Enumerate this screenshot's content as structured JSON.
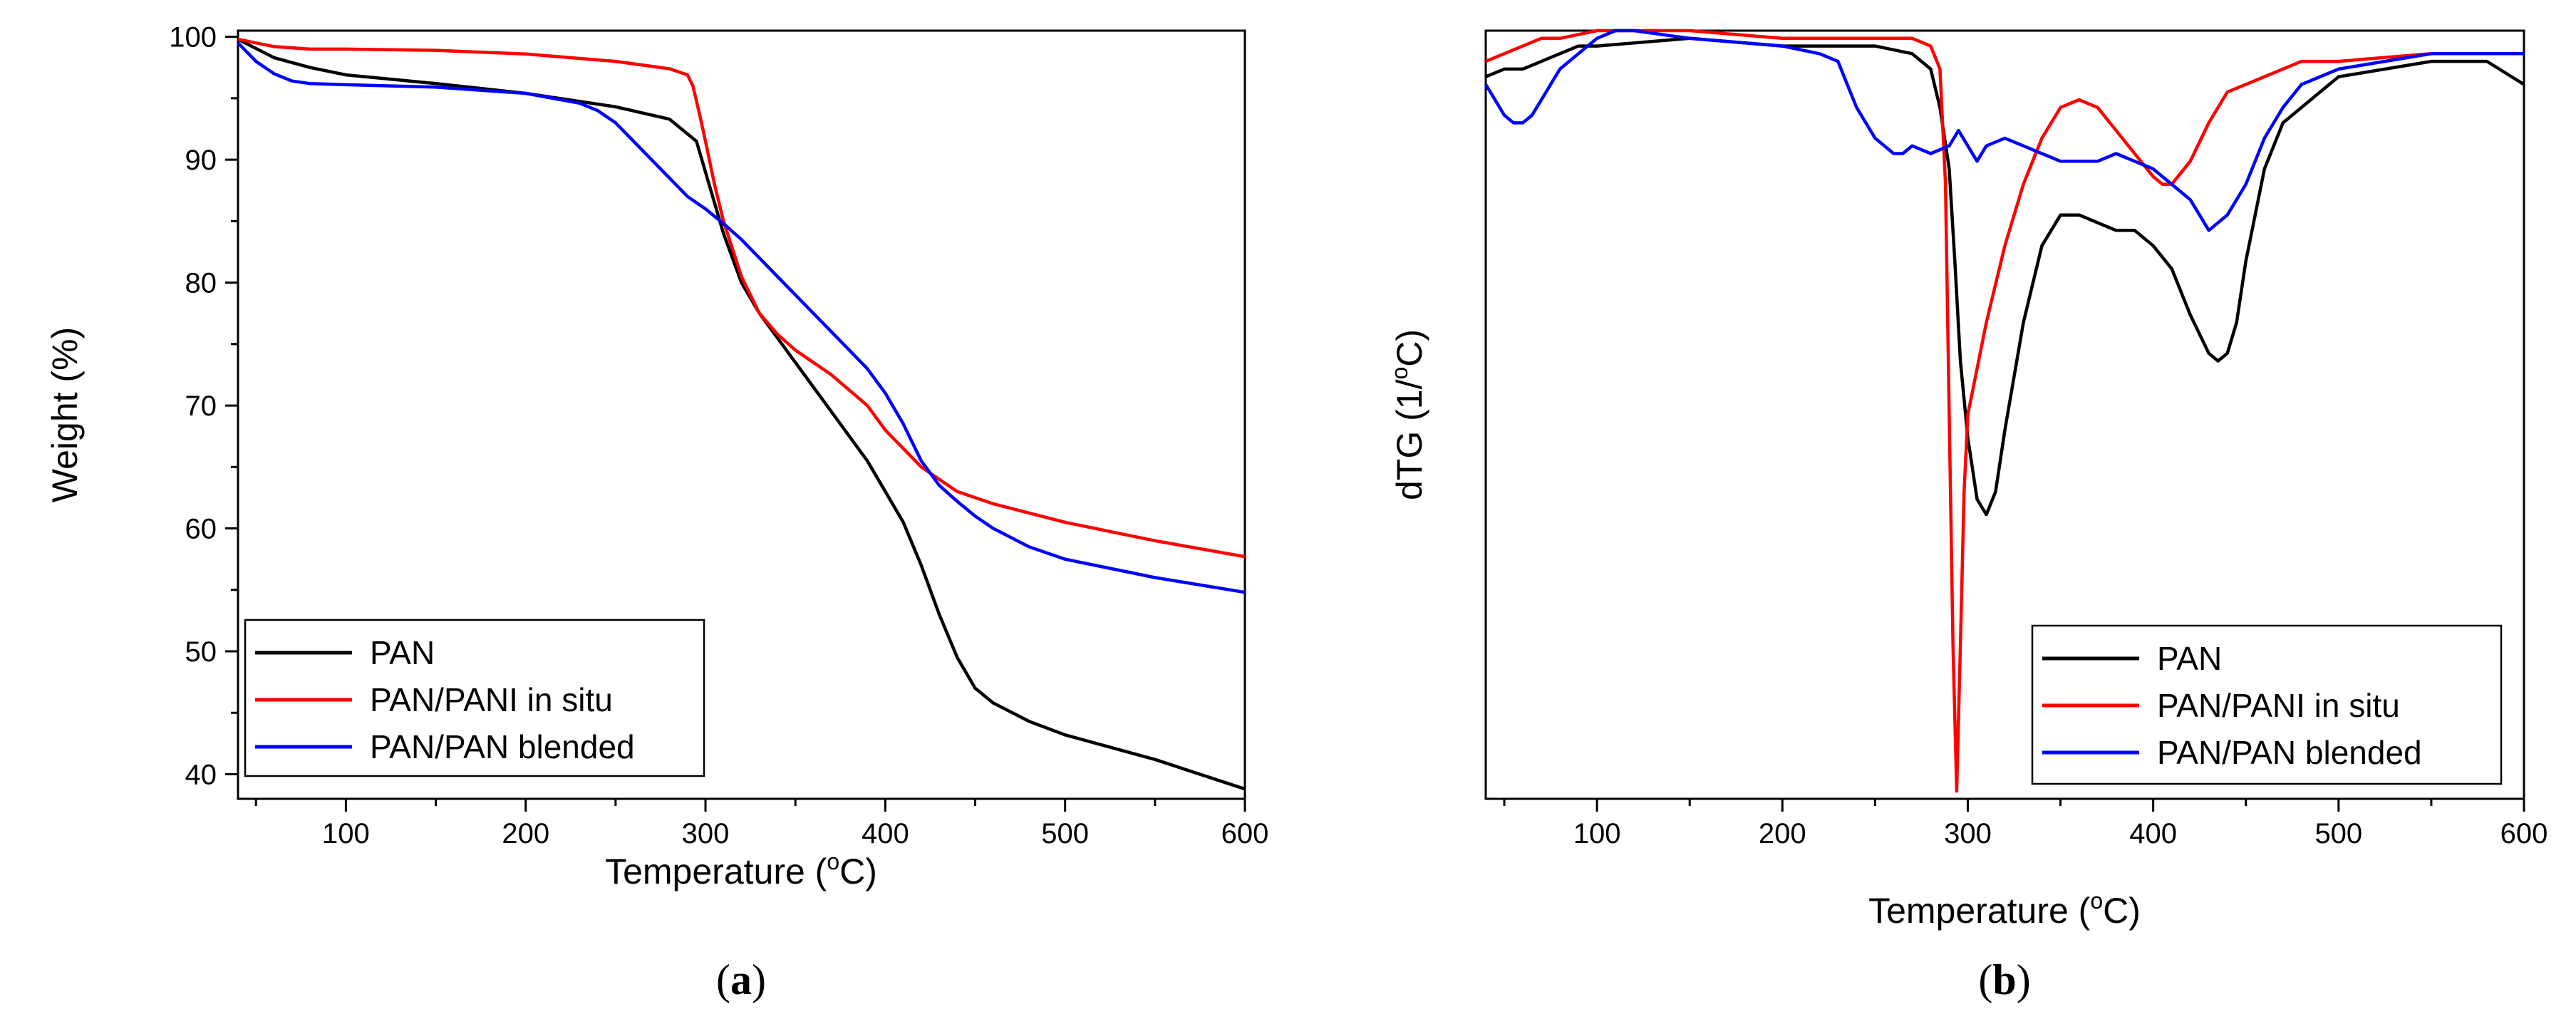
{
  "colors": {
    "PAN": "#000000",
    "PAN/PANI in situ": "#ff0000",
    "PAN/PAN blended": "#0000ff"
  },
  "chart_data": [
    {
      "type": "line",
      "panel": "(a)",
      "panel_letter": "a",
      "xlabel": "Temperature (",
      "xlabel_degree": "o",
      "xlabel_unit": "C)",
      "ylabel": "Weight (%)",
      "xlim": [
        40,
        600
      ],
      "ylim": [
        38,
        100.5
      ],
      "xticks": [
        100,
        200,
        300,
        400,
        500,
        600
      ],
      "yticks": [
        40,
        50,
        60,
        70,
        80,
        90,
        100
      ],
      "legend_position": "bottom-left",
      "series": [
        {
          "name": "PAN",
          "color": "#000000",
          "x": [
            40,
            60,
            80,
            100,
            150,
            200,
            250,
            280,
            295,
            300,
            310,
            320,
            330,
            340,
            350,
            370,
            390,
            400,
            410,
            420,
            430,
            440,
            450,
            460,
            480,
            500,
            550,
            600
          ],
          "y": [
            99.8,
            98.3,
            97.5,
            96.9,
            96.2,
            95.4,
            94.3,
            93.3,
            91.5,
            89.0,
            84.0,
            80.0,
            77.5,
            75.5,
            73.5,
            69.5,
            65.5,
            63.0,
            60.5,
            57.0,
            53.0,
            49.5,
            47.0,
            45.8,
            44.3,
            43.2,
            41.2,
            38.8
          ]
        },
        {
          "name": "PAN/PANI in situ",
          "color": "#ff0000",
          "x": [
            40,
            60,
            80,
            100,
            150,
            200,
            250,
            280,
            290,
            293,
            297,
            300,
            305,
            310,
            320,
            330,
            340,
            350,
            370,
            390,
            400,
            410,
            420,
            430,
            440,
            460,
            500,
            550,
            600
          ],
          "y": [
            99.8,
            99.2,
            99.0,
            99.0,
            98.9,
            98.6,
            98.0,
            97.4,
            96.9,
            96.0,
            93.5,
            91.5,
            88.0,
            85.0,
            80.5,
            77.5,
            75.8,
            74.5,
            72.5,
            70.0,
            68.0,
            66.5,
            65.0,
            64.0,
            63.0,
            62.0,
            60.5,
            59.0,
            57.7
          ]
        },
        {
          "name": "PAN/PAN blended",
          "color": "#0000ff",
          "x": [
            40,
            50,
            60,
            70,
            80,
            100,
            150,
            200,
            230,
            240,
            250,
            260,
            270,
            280,
            290,
            300,
            310,
            320,
            330,
            340,
            350,
            370,
            390,
            400,
            410,
            420,
            430,
            440,
            450,
            460,
            480,
            500,
            550,
            600
          ],
          "y": [
            99.5,
            98.0,
            97.0,
            96.4,
            96.2,
            96.1,
            95.9,
            95.4,
            94.6,
            94.0,
            93.0,
            91.5,
            90.0,
            88.5,
            87.0,
            86.0,
            84.8,
            83.5,
            82.0,
            80.5,
            79.0,
            76.0,
            73.0,
            71.0,
            68.5,
            65.5,
            63.5,
            62.2,
            61.0,
            60.0,
            58.5,
            57.5,
            56.0,
            54.8
          ]
        }
      ]
    },
    {
      "type": "line",
      "panel": "(b)",
      "panel_letter": "b",
      "xlabel": "Temperature (",
      "xlabel_degree": "o",
      "xlabel_unit": "C)",
      "ylabel": "dTG (1/",
      "ylabel_degree": "o",
      "ylabel_unit": "C)",
      "xlim": [
        40,
        600
      ],
      "ylim": [
        0,
        1
      ],
      "y_tick_labels_shown": false,
      "xticks": [
        100,
        200,
        300,
        400,
        500,
        600
      ],
      "legend_position": "bottom-right",
      "series": [
        {
          "name": "PAN",
          "color": "#000000",
          "x": [
            40,
            50,
            60,
            70,
            80,
            90,
            100,
            150,
            200,
            250,
            270,
            280,
            285,
            290,
            293,
            296,
            300,
            305,
            310,
            315,
            320,
            330,
            340,
            350,
            360,
            370,
            380,
            390,
            400,
            410,
            420,
            430,
            435,
            440,
            445,
            450,
            460,
            470,
            490,
            500,
            550,
            580,
            600
          ],
          "y": [
            0.94,
            0.95,
            0.95,
            0.96,
            0.97,
            0.98,
            0.98,
            0.99,
            0.98,
            0.98,
            0.97,
            0.95,
            0.9,
            0.82,
            0.7,
            0.57,
            0.47,
            0.39,
            0.37,
            0.4,
            0.48,
            0.62,
            0.72,
            0.76,
            0.76,
            0.75,
            0.74,
            0.74,
            0.72,
            0.69,
            0.63,
            0.58,
            0.57,
            0.58,
            0.62,
            0.7,
            0.82,
            0.88,
            0.92,
            0.94,
            0.96,
            0.96,
            0.93
          ]
        },
        {
          "name": "PAN/PANI in situ",
          "color": "#ff0000",
          "x": [
            40,
            50,
            60,
            70,
            80,
            100,
            150,
            200,
            250,
            270,
            280,
            285,
            288,
            290,
            292,
            294,
            296,
            298,
            300,
            305,
            310,
            320,
            330,
            340,
            350,
            360,
            370,
            380,
            390,
            400,
            405,
            410,
            420,
            430,
            440,
            460,
            480,
            500,
            550,
            600
          ],
          "y": [
            0.96,
            0.97,
            0.98,
            0.99,
            0.99,
            1.0,
            1.0,
            0.99,
            0.99,
            0.99,
            0.98,
            0.95,
            0.8,
            0.5,
            0.2,
            0.01,
            0.2,
            0.4,
            0.5,
            0.56,
            0.62,
            0.72,
            0.8,
            0.86,
            0.9,
            0.91,
            0.9,
            0.87,
            0.84,
            0.81,
            0.8,
            0.8,
            0.83,
            0.88,
            0.92,
            0.94,
            0.96,
            0.96,
            0.97,
            0.97
          ]
        },
        {
          "name": "PAN/PAN blended",
          "color": "#0000ff",
          "x": [
            40,
            45,
            50,
            55,
            60,
            65,
            70,
            80,
            90,
            100,
            110,
            120,
            150,
            200,
            220,
            230,
            235,
            240,
            245,
            250,
            255,
            260,
            265,
            270,
            280,
            290,
            295,
            300,
            305,
            310,
            320,
            330,
            340,
            350,
            360,
            370,
            380,
            390,
            400,
            410,
            420,
            425,
            430,
            440,
            450,
            460,
            470,
            480,
            500,
            550,
            600
          ],
          "y": [
            0.93,
            0.91,
            0.89,
            0.88,
            0.88,
            0.89,
            0.91,
            0.95,
            0.97,
            0.99,
            1.0,
            1.0,
            0.99,
            0.98,
            0.97,
            0.96,
            0.93,
            0.9,
            0.88,
            0.86,
            0.85,
            0.84,
            0.84,
            0.85,
            0.84,
            0.85,
            0.87,
            0.85,
            0.83,
            0.85,
            0.86,
            0.85,
            0.84,
            0.83,
            0.83,
            0.83,
            0.84,
            0.83,
            0.82,
            0.8,
            0.78,
            0.76,
            0.74,
            0.76,
            0.8,
            0.86,
            0.9,
            0.93,
            0.95,
            0.97,
            0.97
          ]
        }
      ]
    }
  ]
}
